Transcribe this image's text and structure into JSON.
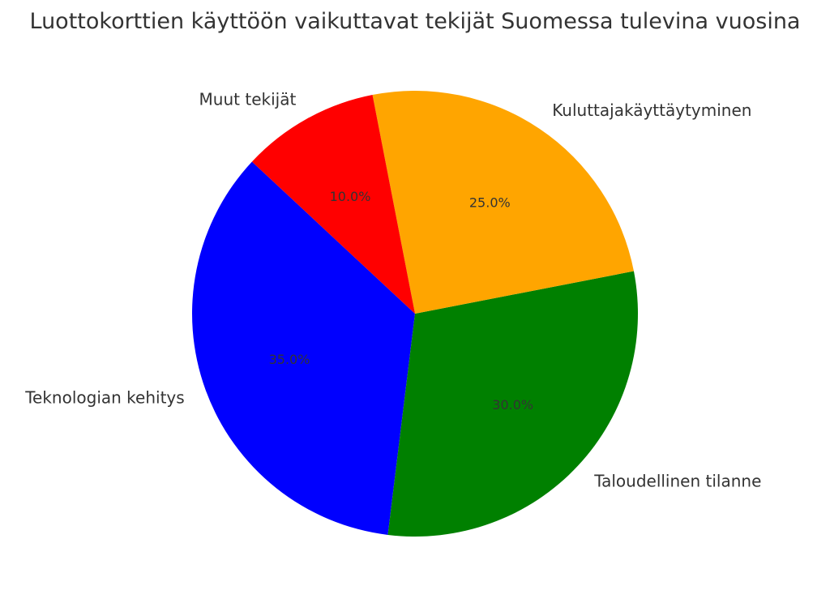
{
  "chart_data": {
    "type": "pie",
    "title": "Luottokorttien käyttöön vaikuttavat tekijät Suomessa tulevina vuosina",
    "slices": [
      {
        "label": "Teknologian kehitys",
        "value": 35.0,
        "pct_label": "35.0%",
        "color": "#0000ff"
      },
      {
        "label": "Taloudellinen tilanne",
        "value": 30.0,
        "pct_label": "30.0%",
        "color": "#008000"
      },
      {
        "label": "Kuluttajakäyttäytyminen",
        "value": 25.0,
        "pct_label": "25.0%",
        "color": "#ffa500"
      },
      {
        "label": "Muut tekijät",
        "value": 10.0,
        "pct_label": "10.0%",
        "color": "#ff0000"
      }
    ],
    "legend": "none"
  }
}
